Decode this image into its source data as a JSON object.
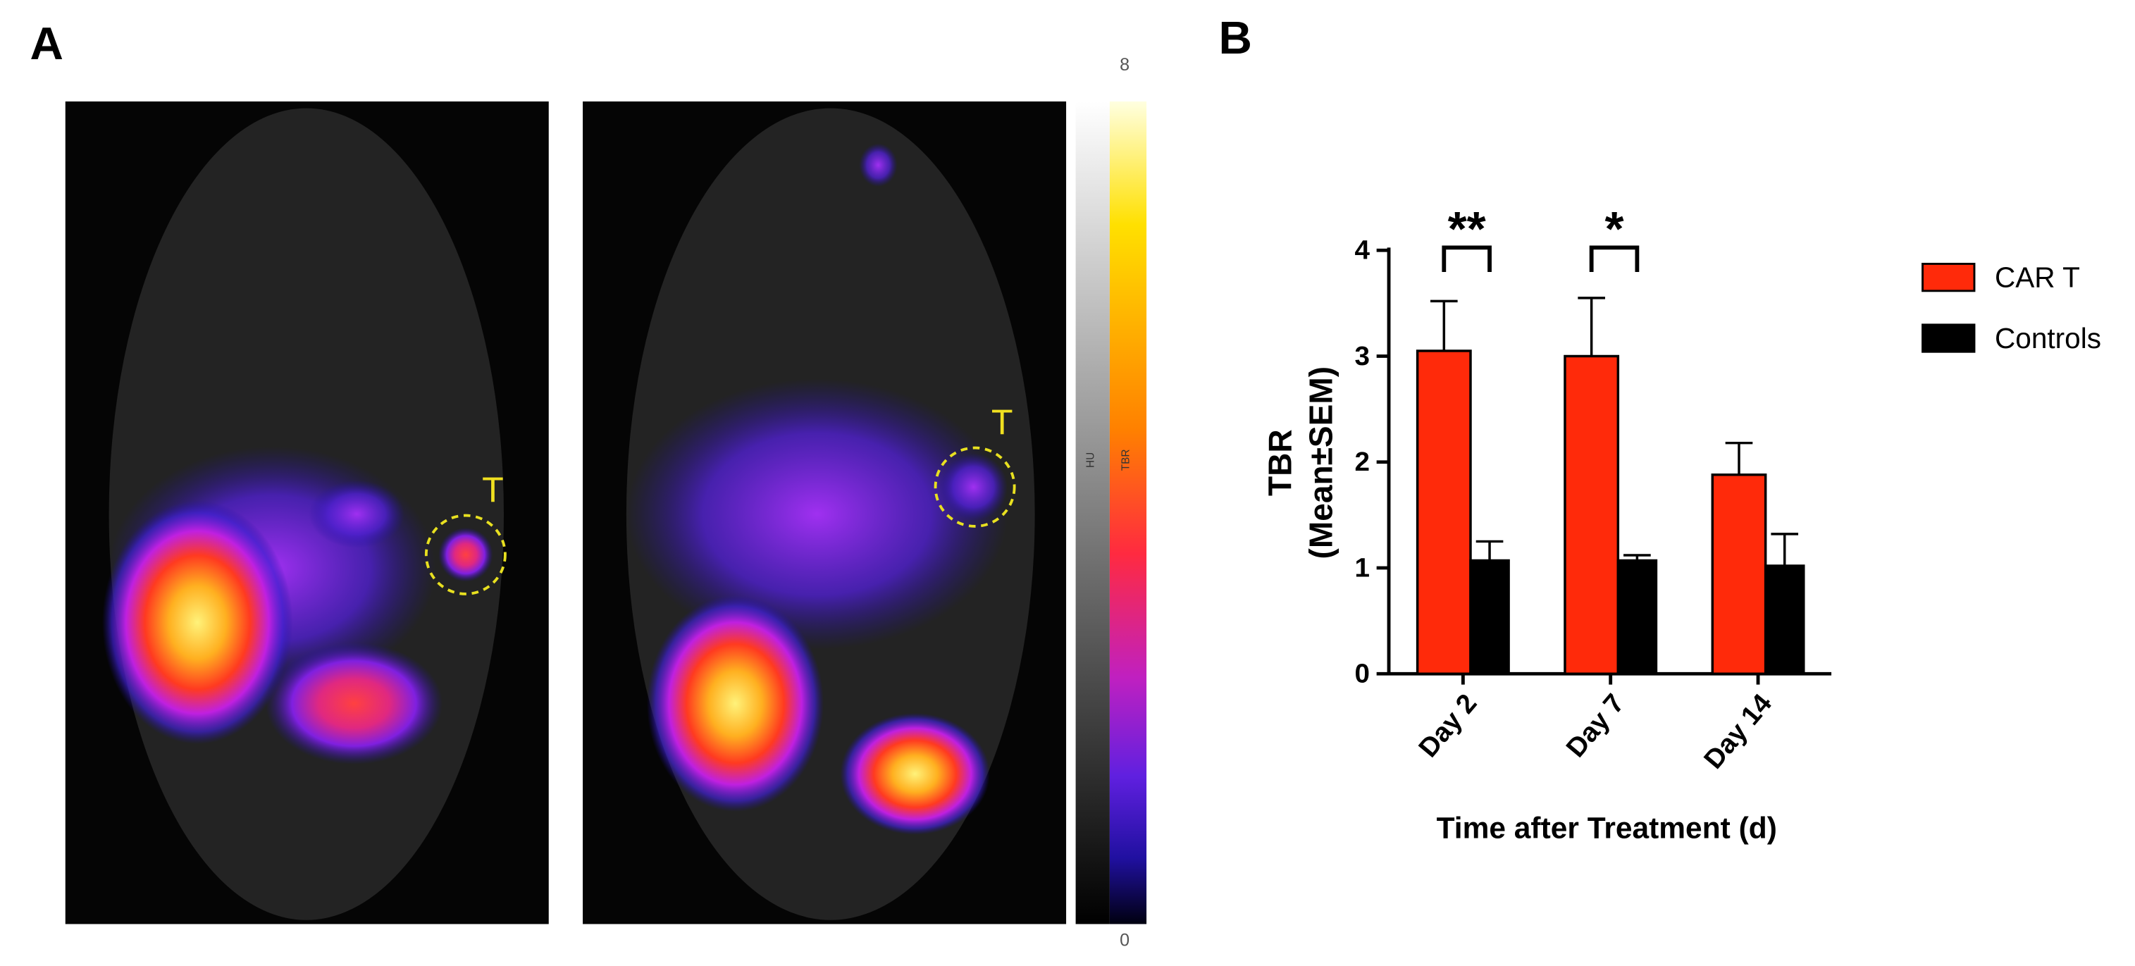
{
  "panels": {
    "a_label": "A",
    "b_label": "B",
    "tumor_labels": [
      "T",
      "T"
    ],
    "colorbar": {
      "max": 8,
      "min": 0,
      "left_label": "HU",
      "right_label": "TBR"
    }
  },
  "chart_data": {
    "type": "bar",
    "categories": [
      "Day 2",
      "Day 7",
      "Day 14"
    ],
    "series": [
      {
        "name": "CAR T",
        "color": "#ff2a0a",
        "values": [
          3.05,
          3.0,
          1.88
        ],
        "errors": [
          0.47,
          0.55,
          0.3
        ]
      },
      {
        "name": "Controls",
        "color": "#000000",
        "values": [
          1.07,
          1.07,
          1.02
        ],
        "errors": [
          0.18,
          0.05,
          0.3
        ]
      }
    ],
    "y_label": [
      "TBR",
      "(Mean±SEM)"
    ],
    "x_label": "Time after Treatment (d)",
    "ylim": [
      0,
      4
    ],
    "yticks": [
      0,
      1,
      2,
      3,
      4
    ],
    "annotations": [
      "**",
      "*"
    ],
    "legend": "right"
  }
}
